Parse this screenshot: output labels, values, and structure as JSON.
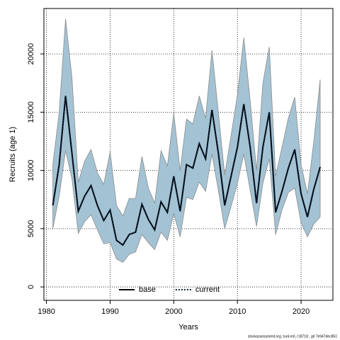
{
  "chart_data": {
    "type": "line",
    "ylabel": "Recruits (age 1)",
    "xlabel": "Years",
    "footer": "stockassessment.org, tur4.m0, r18718 , git 7e947dec851",
    "x": [
      1981,
      1982,
      1983,
      1984,
      1985,
      1986,
      1987,
      1988,
      1989,
      1990,
      1991,
      1992,
      1993,
      1994,
      1995,
      1996,
      1997,
      1998,
      1999,
      2000,
      2001,
      2002,
      2003,
      2004,
      2005,
      2006,
      2007,
      2008,
      2009,
      2010,
      2011,
      2012,
      2013,
      2014,
      2015,
      2016,
      2017,
      2018,
      2019,
      2020,
      2021,
      2022,
      2023
    ],
    "series": [
      {
        "name": "base",
        "color": "#000000",
        "style": "solid",
        "values": [
          7000,
          10500,
          16400,
          11500,
          6500,
          7800,
          8700,
          7000,
          5700,
          6600,
          4000,
          3600,
          4500,
          4700,
          7100,
          5800,
          4900,
          7300,
          6400,
          9500,
          6500,
          10500,
          10200,
          12300,
          11000,
          15200,
          11500,
          7000,
          9500,
          12000,
          15700,
          12000,
          7200,
          12000,
          15000,
          6400,
          8200,
          10200,
          11800,
          8000,
          6000,
          8400,
          10300
        ]
      },
      {
        "name": "current",
        "color": "#0a1f3a",
        "style": "dotted",
        "values": [
          7000,
          10500,
          16400,
          11500,
          6500,
          7800,
          8700,
          7000,
          5700,
          6600,
          4000,
          3600,
          4500,
          4700,
          7100,
          5800,
          4900,
          7300,
          6400,
          9500,
          6500,
          10500,
          10200,
          12300,
          11000,
          15200,
          11500,
          7000,
          9500,
          12000,
          15700,
          12000,
          7200,
          12000,
          15000,
          6400,
          8200,
          10200,
          11800,
          8000,
          6000,
          8400,
          10300
        ]
      }
    ],
    "band": {
      "color": "#a3c3d4",
      "edge": "#8a8a8a",
      "upper": [
        10500,
        15000,
        23000,
        18000,
        9000,
        10800,
        11800,
        9800,
        8800,
        11600,
        7000,
        6100,
        7600,
        7600,
        11200,
        8500,
        7200,
        11700,
        10400,
        14900,
        10000,
        14400,
        14000,
        16400,
        14500,
        20300,
        15000,
        9600,
        13000,
        16500,
        21400,
        16000,
        10000,
        17500,
        20600,
        9500,
        12000,
        14500,
        16300,
        10500,
        8000,
        12500,
        17800
      ],
      "lower": [
        5000,
        7800,
        11700,
        9300,
        4600,
        5600,
        6200,
        4900,
        3700,
        3800,
        2400,
        2100,
        2800,
        3000,
        4500,
        3800,
        3200,
        4700,
        4000,
        6300,
        4300,
        7700,
        7500,
        9000,
        8200,
        11400,
        8300,
        5000,
        6900,
        8900,
        11400,
        8300,
        5200,
        8900,
        11000,
        4500,
        6600,
        8100,
        8500,
        5500,
        4300,
        5400,
        6000
      ]
    },
    "xlim": [
      1979.6,
      2025
    ],
    "ylim": [
      -1150,
      23900
    ],
    "xticks": [
      1980,
      1990,
      2000,
      2010,
      2020
    ],
    "yticks": [
      0,
      5000,
      10000,
      15000,
      20000
    ],
    "grid": true,
    "legend": "bottom"
  }
}
